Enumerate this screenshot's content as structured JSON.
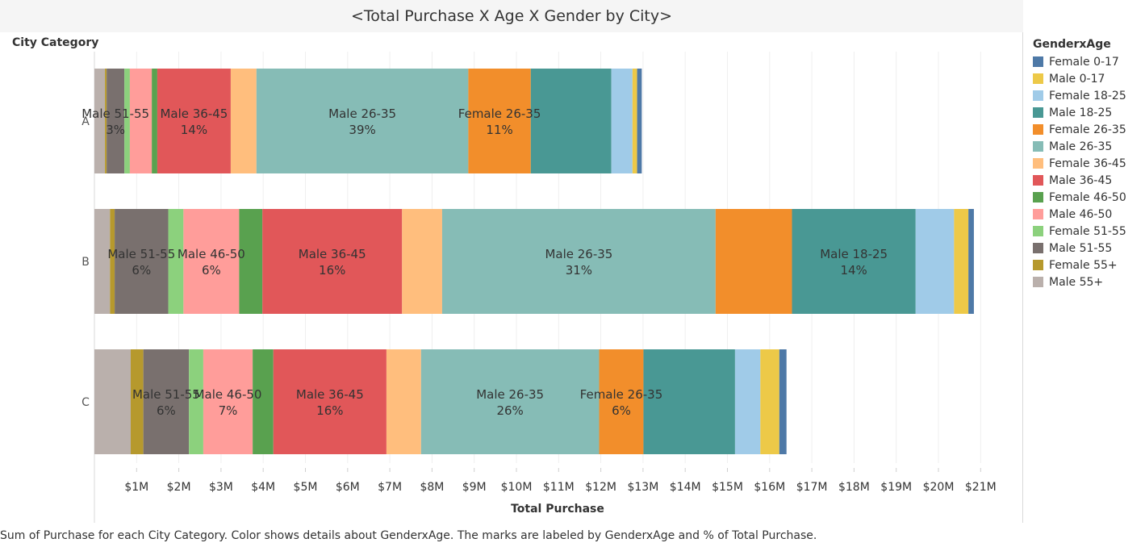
{
  "title": "<Total Purchase X Age X Gender by City>",
  "caption": "Sum of Purchase for each City Category.  Color shows details about GenderxAge.  The marks are labeled by GenderxAge and % of Total Purchase.",
  "legend_title": "GenderxAge",
  "legend": [
    {
      "label": "Female 0-17",
      "color": "#4e79a7"
    },
    {
      "label": "Male 0-17",
      "color": "#edc948"
    },
    {
      "label": "Female 18-25",
      "color": "#a0cbe8"
    },
    {
      "label": "Male 18-25",
      "color": "#499894"
    },
    {
      "label": "Female 26-35",
      "color": "#f28e2b"
    },
    {
      "label": "Male 26-35",
      "color": "#86bcb6"
    },
    {
      "label": "Female 36-45",
      "color": "#ffbe7d"
    },
    {
      "label": "Male 36-45",
      "color": "#e15759"
    },
    {
      "label": "Female 46-50",
      "color": "#59a14f"
    },
    {
      "label": "Male 46-50",
      "color": "#ff9d9a"
    },
    {
      "label": "Female 51-55",
      "color": "#8cd17d"
    },
    {
      "label": "Male 51-55",
      "color": "#79706e"
    },
    {
      "label": "Female 55+",
      "color": "#b6992d"
    },
    {
      "label": "Male 55+",
      "color": "#bab0ac"
    }
  ],
  "chart_data": {
    "type": "bar",
    "orientation": "horizontal",
    "stacked": true,
    "ylabel": "City Category",
    "xlabel": "Total Purchase",
    "xlim": [
      0,
      21900000
    ],
    "x_ticks": [
      1000000,
      2000000,
      3000000,
      4000000,
      5000000,
      6000000,
      7000000,
      8000000,
      9000000,
      10000000,
      11000000,
      12000000,
      13000000,
      14000000,
      15000000,
      16000000,
      17000000,
      18000000,
      19000000,
      20000000,
      21000000
    ],
    "x_tick_labels": [
      "$1M",
      "$2M",
      "$3M",
      "$4M",
      "$5M",
      "$6M",
      "$7M",
      "$8M",
      "$9M",
      "$10M",
      "$11M",
      "$12M",
      "$13M",
      "$14M",
      "$15M",
      "$16M",
      "$17M",
      "$18M",
      "$19M",
      "$20M",
      "$21M"
    ],
    "grid": "vertical",
    "legend_position": "right",
    "categories": [
      "A",
      "B",
      "C"
    ],
    "series": [
      {
        "name": "Male 55+",
        "values": [
          250000,
          370000,
          860000
        ]
      },
      {
        "name": "Female 55+",
        "values": [
          40000,
          110000,
          300000
        ]
      },
      {
        "name": "Male 51-55",
        "values": [
          420000,
          1270000,
          1080000
        ]
      },
      {
        "name": "Female 51-55",
        "values": [
          130000,
          360000,
          340000
        ]
      },
      {
        "name": "Male 46-50",
        "values": [
          520000,
          1320000,
          1170000
        ]
      },
      {
        "name": "Female 46-50",
        "values": [
          130000,
          550000,
          490000
        ]
      },
      {
        "name": "Male 36-45",
        "values": [
          1740000,
          3310000,
          2680000
        ]
      },
      {
        "name": "Female 36-45",
        "values": [
          610000,
          950000,
          820000
        ]
      },
      {
        "name": "Male 26-35",
        "values": [
          5020000,
          6480000,
          4220000
        ]
      },
      {
        "name": "Female 26-35",
        "values": [
          1480000,
          1810000,
          1050000
        ]
      },
      {
        "name": "Male 18-25",
        "values": [
          1910000,
          2930000,
          2170000
        ]
      },
      {
        "name": "Female 18-25",
        "values": [
          500000,
          910000,
          600000
        ]
      },
      {
        "name": "Male 0-17",
        "values": [
          110000,
          340000,
          450000
        ]
      },
      {
        "name": "Female 0-17",
        "values": [
          110000,
          130000,
          170000
        ]
      }
    ],
    "data_labels": [
      {
        "category": "A",
        "series": "Male 51-55",
        "label": "Male 51-55",
        "pct": "3%"
      },
      {
        "category": "A",
        "series": "Male 36-45",
        "label": "Male 36-45",
        "pct": "14%"
      },
      {
        "category": "A",
        "series": "Male 26-35",
        "label": "Male 26-35",
        "pct": "39%"
      },
      {
        "category": "A",
        "series": "Female 26-35",
        "label": "Female 26-35",
        "pct": "11%"
      },
      {
        "category": "B",
        "series": "Male 51-55",
        "label": "Male 51-55",
        "pct": "6%"
      },
      {
        "category": "B",
        "series": "Male 46-50",
        "label": "Male 46-50",
        "pct": "6%"
      },
      {
        "category": "B",
        "series": "Male 36-45",
        "label": "Male 36-45",
        "pct": "16%"
      },
      {
        "category": "B",
        "series": "Male 26-35",
        "label": "Male 26-35",
        "pct": "31%"
      },
      {
        "category": "B",
        "series": "Male 18-25",
        "label": "Male 18-25",
        "pct": "14%"
      },
      {
        "category": "C",
        "series": "Male 51-55",
        "label": "Male 51-55",
        "pct": "6%"
      },
      {
        "category": "C",
        "series": "Male 46-50",
        "label": "Male 46-50",
        "pct": "7%"
      },
      {
        "category": "C",
        "series": "Male 36-45",
        "label": "Male 36-45",
        "pct": "16%"
      },
      {
        "category": "C",
        "series": "Male 26-35",
        "label": "Male 26-35",
        "pct": "26%"
      },
      {
        "category": "C",
        "series": "Female 26-35",
        "label": "Female 26-35",
        "pct": "6%"
      }
    ]
  }
}
